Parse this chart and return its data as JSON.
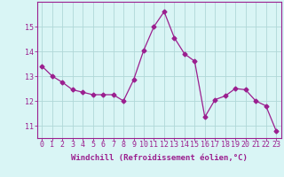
{
  "x": [
    0,
    1,
    2,
    3,
    4,
    5,
    6,
    7,
    8,
    9,
    10,
    11,
    12,
    13,
    14,
    15,
    16,
    17,
    18,
    19,
    20,
    21,
    22,
    23
  ],
  "y": [
    13.4,
    13.0,
    12.75,
    12.45,
    12.35,
    12.25,
    12.25,
    12.25,
    12.0,
    12.85,
    14.05,
    15.0,
    15.6,
    14.55,
    13.9,
    13.6,
    11.35,
    12.05,
    12.2,
    12.5,
    12.45,
    12.0,
    11.8,
    10.8
  ],
  "line_color": "#9b1f8f",
  "marker": "D",
  "markersize": 2.5,
  "linewidth": 0.9,
  "bg_color": "#d9f5f5",
  "grid_color": "#b0d8d8",
  "xlabel": "Windchill (Refroidissement éolien,°C)",
  "ylabel": "",
  "xlim": [
    -0.5,
    23.5
  ],
  "ylim": [
    10.5,
    16.0
  ],
  "yticks": [
    11,
    12,
    13,
    14,
    15
  ],
  "xticks": [
    0,
    1,
    2,
    3,
    4,
    5,
    6,
    7,
    8,
    9,
    10,
    11,
    12,
    13,
    14,
    15,
    16,
    17,
    18,
    19,
    20,
    21,
    22,
    23
  ],
  "xlabel_fontsize": 6.5,
  "tick_fontsize": 6.0,
  "tick_color": "#9b1f8f",
  "axis_color": "#9b1f8f"
}
